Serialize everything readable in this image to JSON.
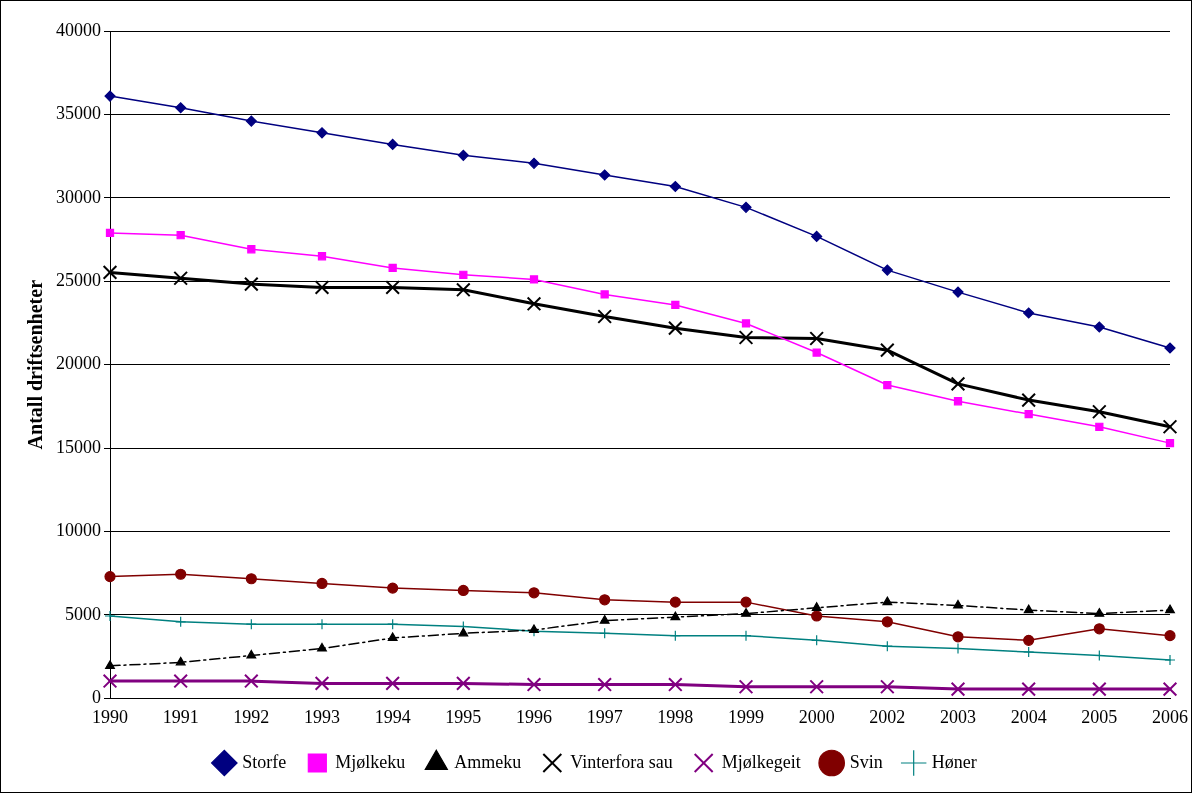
{
  "chart_data": {
    "type": "line",
    "ylabel": "Antall driftsenheter",
    "categories": [
      "1990",
      "1991",
      "1992",
      "1993",
      "1994",
      "1995",
      "1996",
      "1997",
      "1998",
      "1999",
      "2000",
      "2002",
      "2003",
      "2004",
      "2005",
      "2006"
    ],
    "ylim": [
      0,
      40000
    ],
    "yticks": [
      0,
      5000,
      10000,
      15000,
      20000,
      25000,
      30000,
      35000,
      40000
    ],
    "grid": "y",
    "legend": "bottom",
    "series": [
      {
        "name": "Storfe",
        "color": "#000080",
        "marker": "diamond",
        "line_style": "solid",
        "values": [
          36100,
          35400,
          34600,
          33900,
          33200,
          32550,
          32070,
          31370,
          30680,
          29430,
          27690,
          25670,
          24350,
          23100,
          22260,
          21000
        ]
      },
      {
        "name": "Mjølkeku",
        "color": "#ff00ff",
        "marker": "square",
        "line_style": "solid",
        "values": [
          27900,
          27760,
          26920,
          26500,
          25800,
          25390,
          25110,
          24210,
          23580,
          22470,
          20730,
          18780,
          17810,
          17040,
          16280,
          15300
        ]
      },
      {
        "name": "Ammeku",
        "color": "#000000",
        "marker": "triangle",
        "line_style": "dashed",
        "values": [
          1950,
          2160,
          2570,
          2990,
          3620,
          3900,
          4100,
          4660,
          4870,
          5080,
          5430,
          5770,
          5570,
          5290,
          5080,
          5290
        ]
      },
      {
        "name": "Vinterfora sau",
        "color": "#000000",
        "marker": "cross",
        "line_style": "solid",
        "values": [
          25530,
          25180,
          24830,
          24630,
          24630,
          24490,
          23650,
          22890,
          22190,
          21630,
          21570,
          20870,
          18850,
          17880,
          17180,
          16280
        ]
      },
      {
        "name": "Mjølkegeit",
        "color": "#800080",
        "marker": "cross",
        "line_style": "solid",
        "values": [
          1040,
          1040,
          1040,
          900,
          900,
          900,
          830,
          830,
          830,
          700,
          700,
          700,
          560,
          560,
          560,
          560
        ]
      },
      {
        "name": "Svin",
        "color": "#800000",
        "marker": "circle",
        "line_style": "solid",
        "values": [
          7300,
          7440,
          7170,
          6890,
          6610,
          6470,
          6330,
          5910,
          5770,
          5770,
          4940,
          4590,
          3690,
          3480,
          4170,
          3760
        ]
      },
      {
        "name": "Høner",
        "color": "#008080",
        "marker": "plus",
        "line_style": "solid",
        "values": [
          4940,
          4590,
          4450,
          4450,
          4450,
          4310,
          4030,
          3900,
          3760,
          3760,
          3480,
          3130,
          2990,
          2780,
          2570,
          2300
        ]
      }
    ]
  }
}
